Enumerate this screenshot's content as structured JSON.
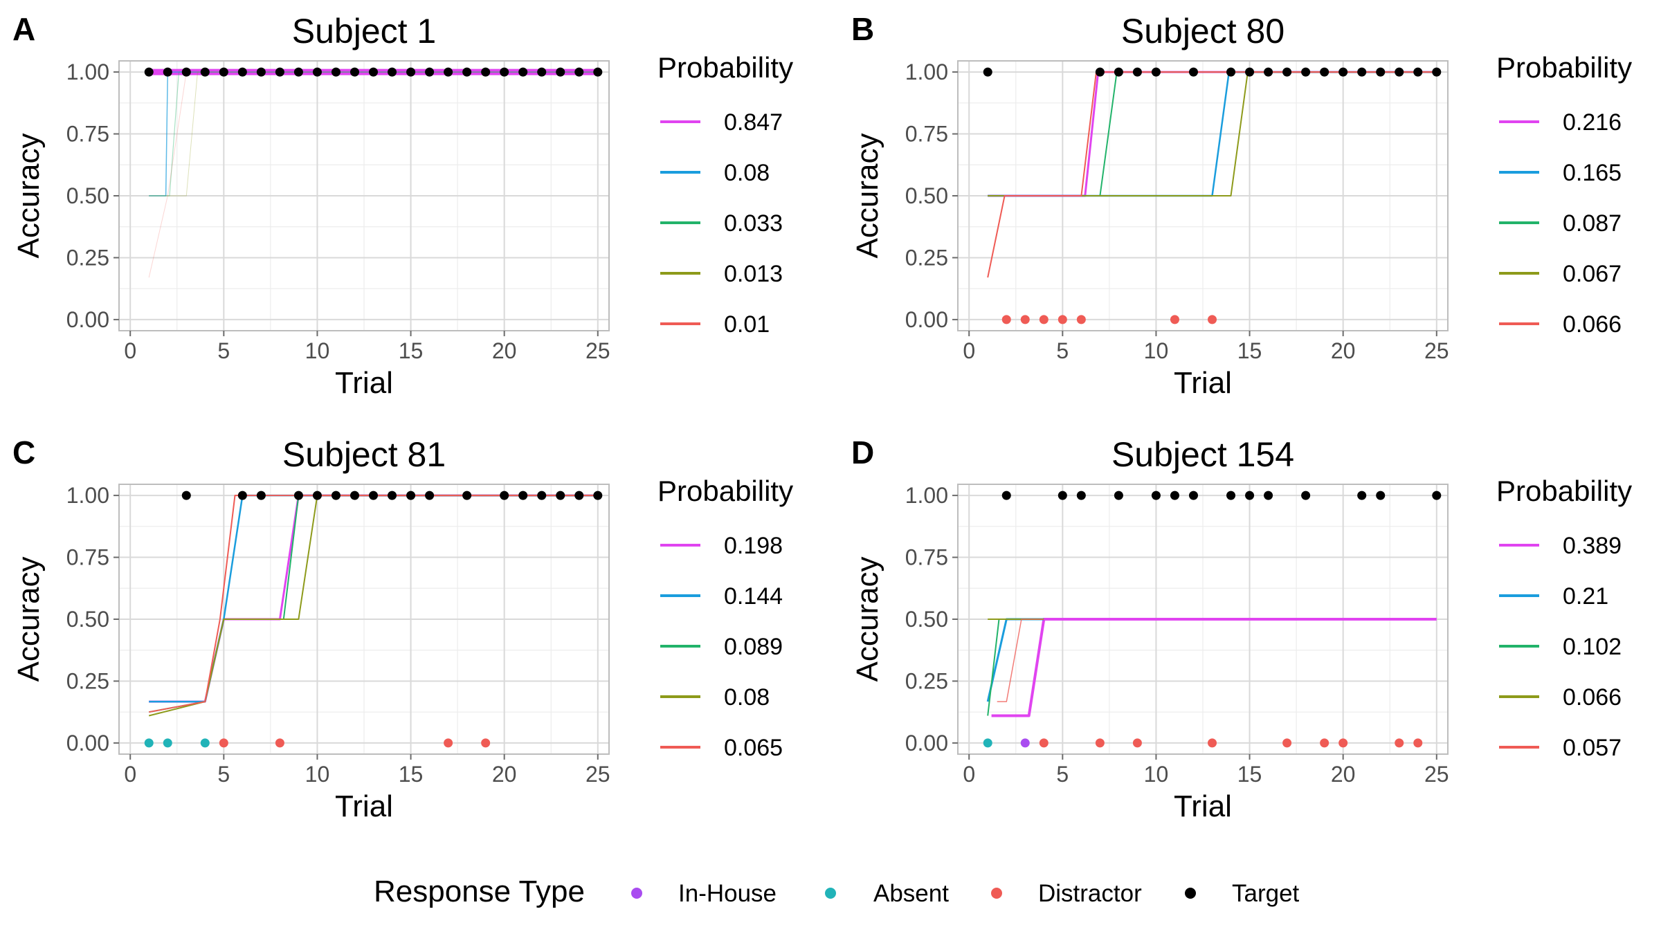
{
  "legend_title": "Probability",
  "response_legend": {
    "title": "Response Type",
    "items": [
      {
        "label": "In-House",
        "color": "#a94cf0"
      },
      {
        "label": "Absent",
        "color": "#21b3b8"
      },
      {
        "label": "Distractor",
        "color": "#ef5b55"
      },
      {
        "label": "Target",
        "color": "#000000"
      }
    ]
  },
  "chart_data": [
    {
      "type": "line",
      "panel": "A",
      "title": "Subject 1",
      "xlabel": "Trial",
      "ylabel": "Accuracy",
      "xlim": [
        0,
        25
      ],
      "ylim": [
        0,
        1
      ],
      "xticks": [
        "0",
        "5",
        "10",
        "15",
        "20",
        "25"
      ],
      "yticks": [
        "0.00",
        "0.25",
        "0.50",
        "0.75",
        "1.00"
      ],
      "series": [
        {
          "name": "0.847",
          "color": "#e044f0",
          "width": 9,
          "opacity": 1.0,
          "points": [
            [
              1,
              1
            ],
            [
              25,
              1
            ]
          ]
        },
        {
          "name": "0.08",
          "color": "#1a9ddd",
          "width": 1.5,
          "opacity": 0.7,
          "points": [
            [
              1,
              0.5
            ],
            [
              1.9,
              0.5
            ],
            [
              2,
              1
            ],
            [
              25,
              1
            ]
          ]
        },
        {
          "name": "0.033",
          "color": "#22b36a",
          "width": 1.2,
          "opacity": 0.4,
          "points": [
            [
              1,
              0.5
            ],
            [
              2.1,
              0.5
            ],
            [
              2.6,
              1
            ],
            [
              25,
              1
            ]
          ]
        },
        {
          "name": "0.013",
          "color": "#8d9a1a",
          "width": 1.0,
          "opacity": 0.3,
          "points": [
            [
              1,
              0.5
            ],
            [
              3,
              0.5
            ],
            [
              3.6,
              1
            ],
            [
              25,
              1
            ]
          ]
        },
        {
          "name": "0.01",
          "color": "#ef5b55",
          "width": 1.0,
          "opacity": 0.25,
          "points": [
            [
              1,
              0.17
            ],
            [
              2,
              0.5
            ],
            [
              3,
              1
            ],
            [
              25,
              1
            ]
          ]
        }
      ],
      "points": [
        {
          "type": "Target",
          "trials": [
            1,
            2,
            3,
            4,
            5,
            6,
            7,
            8,
            9,
            10,
            11,
            12,
            13,
            14,
            15,
            16,
            17,
            18,
            19,
            20,
            21,
            22,
            23,
            24,
            25
          ],
          "y": 1
        }
      ]
    },
    {
      "type": "line",
      "panel": "B",
      "title": "Subject 80",
      "xlabel": "Trial",
      "ylabel": "Accuracy",
      "xlim": [
        0,
        25
      ],
      "ylim": [
        0,
        1
      ],
      "xticks": [
        "0",
        "5",
        "10",
        "15",
        "20",
        "25"
      ],
      "yticks": [
        "0.00",
        "0.25",
        "0.50",
        "0.75",
        "1.00"
      ],
      "series": [
        {
          "name": "0.216",
          "color": "#e044f0",
          "width": 3,
          "opacity": 1.0,
          "points": [
            [
              1,
              0.5
            ],
            [
              6.2,
              0.5
            ],
            [
              6.9,
              1
            ],
            [
              25,
              1
            ]
          ]
        },
        {
          "name": "0.165",
          "color": "#1a9ddd",
          "width": 2.5,
          "opacity": 1.0,
          "points": [
            [
              1,
              0.5
            ],
            [
              13,
              0.5
            ],
            [
              13.9,
              1
            ],
            [
              25,
              1
            ]
          ]
        },
        {
          "name": "0.087",
          "color": "#22b36a",
          "width": 2,
          "opacity": 1.0,
          "points": [
            [
              1,
              0.5
            ],
            [
              7,
              0.5
            ],
            [
              7.9,
              1
            ],
            [
              25,
              1
            ]
          ]
        },
        {
          "name": "0.067",
          "color": "#8d9a1a",
          "width": 2,
          "opacity": 1.0,
          "points": [
            [
              1,
              0.5
            ],
            [
              14,
              0.5
            ],
            [
              14.9,
              1
            ],
            [
              25,
              1
            ]
          ]
        },
        {
          "name": "0.066",
          "color": "#ef5b55",
          "width": 2,
          "opacity": 1.0,
          "points": [
            [
              1,
              0.17
            ],
            [
              1.9,
              0.5
            ],
            [
              6,
              0.5
            ],
            [
              6.8,
              1
            ],
            [
              25,
              1
            ]
          ]
        }
      ],
      "points": [
        {
          "type": "Target",
          "trials": [
            1,
            7,
            8,
            9,
            10,
            12,
            14,
            15,
            16,
            17,
            18,
            19,
            20,
            21,
            22,
            23,
            24,
            25
          ],
          "y": 1
        },
        {
          "type": "Distractor",
          "trials": [
            2,
            3,
            4,
            5,
            6,
            11,
            13
          ],
          "y": 0
        }
      ]
    },
    {
      "type": "line",
      "panel": "C",
      "title": "Subject 81",
      "xlabel": "Trial",
      "ylabel": "Accuracy",
      "xlim": [
        0,
        25
      ],
      "ylim": [
        0,
        1
      ],
      "xticks": [
        "0",
        "5",
        "10",
        "15",
        "20",
        "25"
      ],
      "yticks": [
        "0.00",
        "0.25",
        "0.50",
        "0.75",
        "1.00"
      ],
      "series": [
        {
          "name": "0.198",
          "color": "#e044f0",
          "width": 3,
          "opacity": 1.0,
          "points": [
            [
              1,
              0.167
            ],
            [
              4,
              0.167
            ],
            [
              5,
              0.5
            ],
            [
              8,
              0.5
            ],
            [
              9,
              1
            ],
            [
              25,
              1
            ]
          ]
        },
        {
          "name": "0.144",
          "color": "#1a9ddd",
          "width": 2.5,
          "opacity": 1.0,
          "points": [
            [
              1,
              0.167
            ],
            [
              4,
              0.167
            ],
            [
              5,
              0.5
            ],
            [
              6,
              1
            ],
            [
              25,
              1
            ]
          ]
        },
        {
          "name": "0.089",
          "color": "#22b36a",
          "width": 2,
          "opacity": 1.0,
          "points": [
            [
              1,
              0.125
            ],
            [
              4,
              0.167
            ],
            [
              5,
              0.5
            ],
            [
              8.2,
              0.5
            ],
            [
              9,
              1
            ],
            [
              25,
              1
            ]
          ]
        },
        {
          "name": "0.08",
          "color": "#8d9a1a",
          "width": 2,
          "opacity": 1.0,
          "points": [
            [
              1,
              0.11
            ],
            [
              4,
              0.167
            ],
            [
              5,
              0.5
            ],
            [
              9,
              0.5
            ],
            [
              10,
              1
            ],
            [
              25,
              1
            ]
          ]
        },
        {
          "name": "0.065",
          "color": "#ef5b55",
          "width": 2,
          "opacity": 1.0,
          "points": [
            [
              1,
              0.125
            ],
            [
              4,
              0.167
            ],
            [
              4.8,
              0.5
            ],
            [
              5.6,
              1
            ],
            [
              25,
              1
            ]
          ]
        }
      ],
      "points": [
        {
          "type": "Target",
          "trials": [
            3,
            6,
            7,
            9,
            10,
            11,
            12,
            13,
            14,
            15,
            16,
            18,
            20,
            21,
            22,
            23,
            24,
            25
          ],
          "y": 1
        },
        {
          "type": "Absent",
          "trials": [
            1,
            2,
            4
          ],
          "y": 0
        },
        {
          "type": "Distractor",
          "trials": [
            5,
            8,
            17,
            19
          ],
          "y": 0
        }
      ]
    },
    {
      "type": "line",
      "panel": "D",
      "title": "Subject 154",
      "xlabel": "Trial",
      "ylabel": "Accuracy",
      "xlim": [
        0,
        25
      ],
      "ylim": [
        0,
        1
      ],
      "xticks": [
        "0",
        "5",
        "10",
        "15",
        "20",
        "25"
      ],
      "yticks": [
        "0.00",
        "0.25",
        "0.50",
        "0.75",
        "1.00"
      ],
      "series": [
        {
          "name": "0.389",
          "color": "#e044f0",
          "width": 4,
          "opacity": 1.0,
          "points": [
            [
              1.2,
              0.11
            ],
            [
              3.2,
              0.11
            ],
            [
              4,
              0.5
            ],
            [
              25,
              0.5
            ]
          ]
        },
        {
          "name": "0.21",
          "color": "#1a9ddd",
          "width": 3,
          "opacity": 1.0,
          "points": [
            [
              1,
              0.167
            ],
            [
              2,
              0.5
            ],
            [
              4,
              0.5
            ]
          ]
        },
        {
          "name": "0.102",
          "color": "#22b36a",
          "width": 2,
          "opacity": 1.0,
          "points": [
            [
              1,
              0.11
            ],
            [
              1.6,
              0.5
            ],
            [
              4,
              0.5
            ]
          ]
        },
        {
          "name": "0.066",
          "color": "#8d9a1a",
          "width": 2,
          "opacity": 1.0,
          "points": [
            [
              1,
              0.5
            ],
            [
              4,
              0.5
            ]
          ]
        },
        {
          "name": "0.057",
          "color": "#ef5b55",
          "width": 1.5,
          "opacity": 0.8,
          "points": [
            [
              1.5,
              0.167
            ],
            [
              2,
              0.167
            ],
            [
              2.8,
              0.5
            ],
            [
              4,
              0.5
            ]
          ]
        }
      ],
      "points": [
        {
          "type": "Target",
          "trials": [
            2,
            5,
            6,
            8,
            10,
            11,
            12,
            14,
            15,
            16,
            18,
            21,
            22,
            25
          ],
          "y": 1
        },
        {
          "type": "Absent",
          "trials": [
            1
          ],
          "y": 0
        },
        {
          "type": "In-House",
          "trials": [
            3
          ],
          "y": 0
        },
        {
          "type": "Distractor",
          "trials": [
            4,
            7,
            9,
            13,
            17,
            19,
            20,
            23,
            24
          ],
          "y": 0
        }
      ]
    }
  ]
}
